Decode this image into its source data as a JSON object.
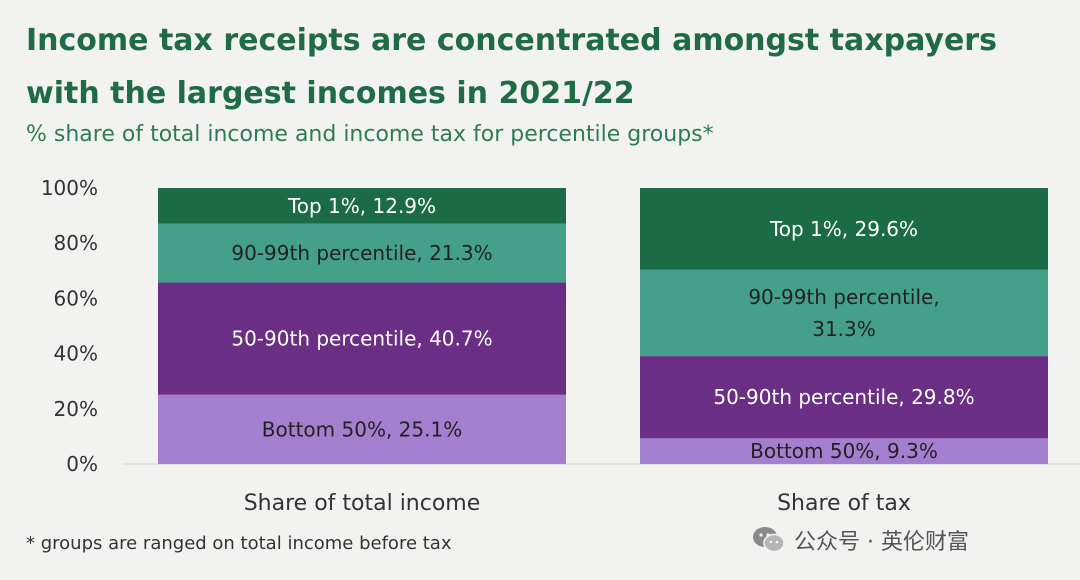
{
  "title_line1": "Income tax receipts are concentrated amongst taxpayers",
  "title_line2": "with the largest incomes in 2021/22",
  "subtitle": "% share of total income and income tax for percentile groups*",
  "footnote": "* groups are ranged on total income before tax",
  "watermark": {
    "text": "公众号 · 英伦财富",
    "icon": "wechat-icon"
  },
  "colors": {
    "bottom_50": "#a57fcf",
    "p50_90": "#6a2e84",
    "p90_99": "#44a08a",
    "top_1": "#1a6b46",
    "segment_text_light": "#ffffff",
    "segment_text_dark": "#222222",
    "axis_text": "#333333"
  },
  "chart_data": {
    "type": "bar",
    "stacked": true,
    "categories": [
      "Share of total income",
      "Share of tax"
    ],
    "ylim": [
      0,
      100
    ],
    "y_ticks": [
      "0%",
      "20%",
      "40%",
      "60%",
      "80%",
      "100%"
    ],
    "series": [
      {
        "name": "Bottom 50%",
        "values": [
          25.1,
          9.3
        ],
        "labels": [
          [
            "Bottom 50%, 25.1%"
          ],
          [
            "Bottom 50%, 9.3%"
          ]
        ],
        "color": "#a57fcf",
        "text_color": "#222222"
      },
      {
        "name": "50-90th percentile",
        "values": [
          40.7,
          29.8
        ],
        "labels": [
          [
            "50-90th percentile, 40.7%"
          ],
          [
            "50-90th percentile, 29.8%"
          ]
        ],
        "color": "#6a2e84",
        "text_color": "#ffffff"
      },
      {
        "name": "90-99th percentile",
        "values": [
          21.3,
          31.3
        ],
        "labels": [
          [
            "90-99th percentile, 21.3%"
          ],
          [
            "90-99th percentile,",
            "31.3%"
          ]
        ],
        "color": "#44a08a",
        "text_color": "#222222"
      },
      {
        "name": "Top 1%",
        "values": [
          12.9,
          29.6
        ],
        "labels": [
          [
            "Top 1%, 12.9%"
          ],
          [
            "Top 1%, 29.6%"
          ]
        ],
        "color": "#1a6b46",
        "text_color": "#ffffff"
      }
    ],
    "title": "Income tax receipts are concentrated amongst taxpayers with the largest incomes in 2021/22",
    "xlabel": "",
    "ylabel": "",
    "grid": false,
    "legend": "none"
  }
}
